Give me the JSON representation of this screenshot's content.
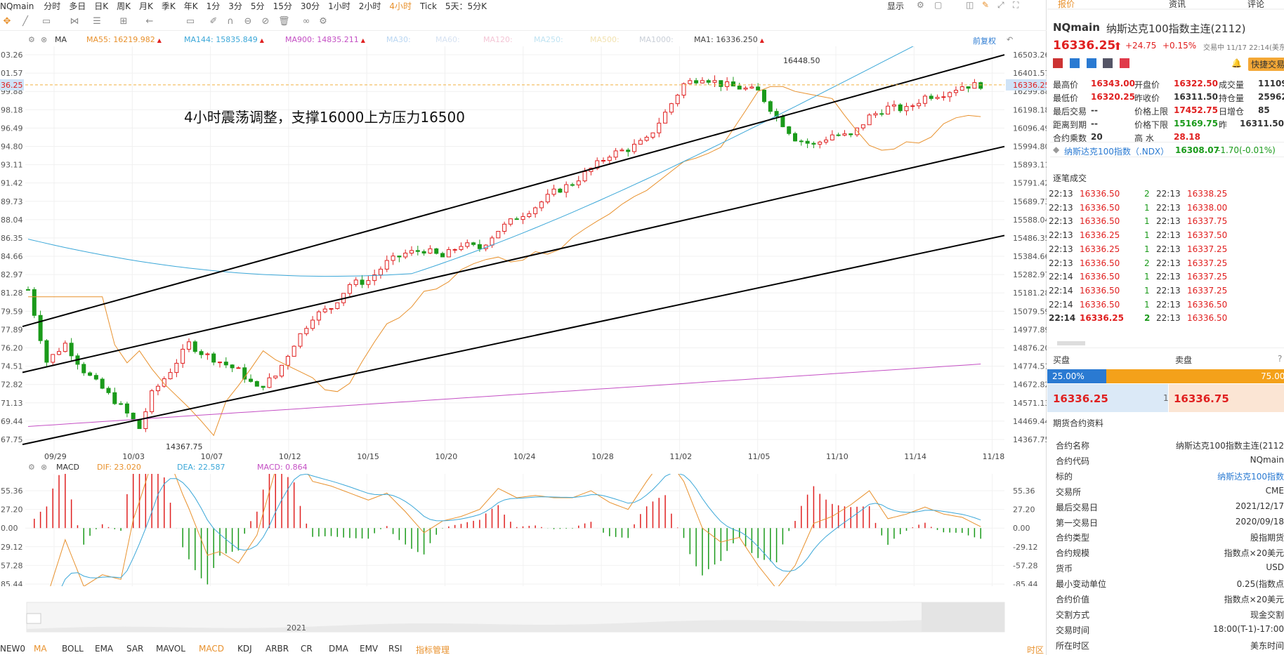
{
  "topbar": {
    "symbol": "NQmain",
    "periods": [
      "分时",
      "多日",
      "日K",
      "周K",
      "月K",
      "季K",
      "年K",
      "1分",
      "3分",
      "5分",
      "15分",
      "30分",
      "1小时",
      "2小时",
      "4小时",
      "Tick",
      "5天：5分K"
    ],
    "active_period": "4小时",
    "display_label": "显示"
  },
  "ma_legend": {
    "type": "MA",
    "items": [
      {
        "label": "MA55: 16219.982",
        "color": "#e8912d",
        "trend": "▲"
      },
      {
        "label": "MA144: 15835.849",
        "color": "#3ba7d8",
        "trend": "▲"
      },
      {
        "label": "MA900: 14835.211",
        "color": "#c44fc4",
        "trend": "▲"
      },
      {
        "label": "MA30:",
        "color": "#b9d6f2",
        "trend": ""
      },
      {
        "label": "MA60:",
        "color": "#d6e2f2",
        "trend": ""
      },
      {
        "label": "MA120:",
        "color": "#f4c6d6",
        "trend": ""
      },
      {
        "label": "MA250:",
        "color": "#bfe3f2",
        "trend": ""
      },
      {
        "label": "MA500:",
        "color": "#f2e2b0",
        "trend": ""
      },
      {
        "label": "MA1000:",
        "color": "#c9cfd8",
        "trend": ""
      },
      {
        "label": "MA1: 16336.250",
        "color": "#444444",
        "trend": "▲"
      }
    ],
    "adjust_label": "前复权"
  },
  "annotation": "4小时震荡调整，支撑16000上方压力16500",
  "chart_data": {
    "type": "candlestick",
    "title": "",
    "price_axis_right": [
      "16503.26",
      "16401.57",
      "16299.88",
      "16198.18",
      "16096.49",
      "15994.80",
      "15893.11",
      "15791.42",
      "15689.73",
      "15588.04",
      "15486.35",
      "15384.66",
      "15282.97",
      "15181.28",
      "15079.59",
      "14977.89",
      "14876.20",
      "14774.51",
      "14672.82",
      "14571.13",
      "14469.44",
      "14367.75"
    ],
    "price_axis_left": [
      "03.26",
      "01.57",
      "99.88",
      "98.18",
      "96.49",
      "94.80",
      "93.11",
      "91.42",
      "89.73",
      "88.04",
      "86.35",
      "84.66",
      "82.97",
      "81.28",
      "79.59",
      "77.89",
      "76.20",
      "74.51",
      "72.82",
      "71.13",
      "69.44",
      "67.75"
    ],
    "y_range": [
      14367.75,
      16503.26
    ],
    "x_labels": [
      "09/29",
      "10/03",
      "10/07",
      "10/12",
      "10/15",
      "10/20",
      "10/24",
      "10/28",
      "11/02",
      "11/05",
      "11/10",
      "11/14",
      "11/18"
    ],
    "current_price": "16336.25",
    "current_price_left": "36.25",
    "high_mark": "16448.50",
    "low_mark": "14367.75",
    "close_path": [
      [
        0,
        15200
      ],
      [
        3,
        14800
      ],
      [
        6,
        14900
      ],
      [
        9,
        14750
      ],
      [
        12,
        14650
      ],
      [
        15,
        14550
      ],
      [
        18,
        14430
      ],
      [
        20,
        14620
      ],
      [
        23,
        14750
      ],
      [
        26,
        14900
      ],
      [
        28,
        14850
      ],
      [
        31,
        14800
      ],
      [
        34,
        14750
      ],
      [
        37,
        14650
      ],
      [
        40,
        14720
      ],
      [
        43,
        14900
      ],
      [
        46,
        15050
      ],
      [
        49,
        15100
      ],
      [
        52,
        15230
      ],
      [
        55,
        15250
      ],
      [
        58,
        15350
      ],
      [
        61,
        15400
      ],
      [
        64,
        15420
      ],
      [
        67,
        15380
      ],
      [
        70,
        15450
      ],
      [
        73,
        15430
      ],
      [
        76,
        15530
      ],
      [
        79,
        15600
      ],
      [
        82,
        15660
      ],
      [
        85,
        15740
      ],
      [
        88,
        15790
      ],
      [
        91,
        15870
      ],
      [
        94,
        15950
      ],
      [
        97,
        15980
      ],
      [
        100,
        16030
      ],
      [
        103,
        16180
      ],
      [
        106,
        16340
      ],
      [
        109,
        16380
      ],
      [
        112,
        16340
      ],
      [
        115,
        16320
      ],
      [
        118,
        16300
      ],
      [
        121,
        16160
      ],
      [
        124,
        16040
      ],
      [
        127,
        16000
      ],
      [
        130,
        16060
      ],
      [
        133,
        16050
      ],
      [
        136,
        16160
      ],
      [
        139,
        16210
      ],
      [
        142,
        16200
      ],
      [
        145,
        16270
      ],
      [
        148,
        16290
      ],
      [
        151,
        16330
      ],
      [
        154,
        16336
      ]
    ],
    "trendlines": [
      {
        "from": [
          14995,
          15350
        ],
        "to": [
          16503,
          16503
        ],
        "label": "upper"
      },
      {
        "from": [
          14740,
          14740
        ],
        "to": [
          15994,
          15994
        ],
        "label": "middle"
      },
      {
        "from": [
          14340,
          14340
        ],
        "to": [
          15500,
          15500
        ],
        "label": "lower"
      }
    ],
    "macd": {
      "dif": "DIF: 23.020",
      "dea": "DEA: 22.587",
      "macd": "MACD: 0.864",
      "axis": [
        "55.36",
        "27.20",
        "0.00",
        "-29.12",
        "-57.28",
        "-85.44"
      ],
      "axis_left": [
        "55.36",
        "27.20",
        "0.00",
        "29.12",
        "57.28",
        "85.44"
      ]
    },
    "navigator_year": "2021"
  },
  "indicators_bar": {
    "items": [
      "NEW0",
      "MA",
      "BOLL",
      "EMA",
      "SAR",
      "MAVOL",
      "MACD",
      "KDJ",
      "ARBR",
      "CR",
      "DMA",
      "EMV",
      "RSI",
      "指标管理"
    ],
    "active": [
      "MA",
      "MACD"
    ],
    "right_label": "时区"
  },
  "right_panel": {
    "tabs": [
      "报价",
      "资讯",
      "评论"
    ],
    "symbol": "NQmain",
    "name": "纳斯达克100指数主连(2112)",
    "price": "16336.25",
    "arrow": "⬆",
    "change": "+24.75",
    "change_pct": "+0.15%",
    "status": "交易中 11/17 22:14(美东",
    "quick_trade": "快捷交易",
    "stats": [
      [
        [
          "最高价",
          "16343.00",
          "red"
        ],
        [
          "开盘价",
          "16322.50",
          "red"
        ],
        [
          "成交量",
          "11109",
          "dark"
        ]
      ],
      [
        [
          "最低价",
          "16320.25",
          "red"
        ],
        [
          "昨收价",
          "16311.50",
          "dark"
        ],
        [
          "持仓量",
          "259622",
          "dark"
        ]
      ],
      [
        [
          "最后交易",
          "--",
          "dark"
        ],
        [
          "价格上限",
          "17452.75",
          "red"
        ],
        [
          "日增仓",
          "85",
          "dark"
        ]
      ],
      [
        [
          "距离到期",
          "--",
          "dark"
        ],
        [
          "价格下限",
          "15169.75",
          "green"
        ],
        [
          "昨",
          "16311.50",
          "dark"
        ]
      ],
      [
        [
          "合约乘数",
          "20",
          "dark"
        ],
        [
          "高 水",
          "28.18",
          "red"
        ],
        [
          "",
          "",
          " "
        ]
      ]
    ],
    "related": {
      "name": "纳斯达克100指数（.NDX）",
      "price": "16308.07",
      "change": "-1.70(-0.01%)"
    },
    "ticks_title": "逐笔成交",
    "ticks": [
      [
        "22:13",
        "16336.50",
        "2",
        "22:13",
        "16338.25"
      ],
      [
        "22:13",
        "16336.50",
        "1",
        "22:13",
        "16338.00"
      ],
      [
        "22:13",
        "16336.50",
        "1",
        "22:13",
        "16337.75"
      ],
      [
        "22:13",
        "16336.25",
        "1",
        "22:13",
        "16337.50"
      ],
      [
        "22:13",
        "16336.25",
        "1",
        "22:13",
        "16337.25"
      ],
      [
        "22:13",
        "16336.50",
        "2",
        "22:13",
        "16337.25"
      ],
      [
        "22:14",
        "16336.50",
        "1",
        "22:13",
        "16337.25"
      ],
      [
        "22:14",
        "16336.50",
        "1",
        "22:13",
        "16337.25"
      ],
      [
        "22:14",
        "16336.50",
        "1",
        "22:13",
        "16336.50"
      ],
      [
        "22:14",
        "16336.25",
        "2",
        "22:13",
        "16336.50"
      ]
    ],
    "book": {
      "bid_label": "买盘",
      "ask_label": "卖盘",
      "bid_pct": "25.00%",
      "ask_pct": "75.00%",
      "bid_fraction": 0.25,
      "bid_price": "16336.25",
      "qty": "1",
      "ask_price": "16336.75"
    },
    "contract_title": "期货合约资料",
    "contract": [
      [
        "合约名称",
        "纳斯达克100指数主连(2112"
      ],
      [
        "合约代码",
        "NQmain"
      ],
      [
        "标的",
        "纳斯达克100指数"
      ],
      [
        "交易所",
        "CME"
      ],
      [
        "最后交易日",
        "2021/12/17"
      ],
      [
        "第一交易日",
        "2020/09/18"
      ],
      [
        "合约类型",
        "股指期货"
      ],
      [
        "合约规模",
        "指数点×20美元"
      ],
      [
        "货币",
        "USD"
      ],
      [
        "最小变动单位",
        "0.25(指数点"
      ],
      [
        "合约价值",
        "指数点×20美元"
      ],
      [
        "交割方式",
        "现金交割"
      ],
      [
        "交易时间",
        "18:00(T-1)-17:00"
      ],
      [
        "所在时区",
        "美东时间"
      ]
    ]
  }
}
